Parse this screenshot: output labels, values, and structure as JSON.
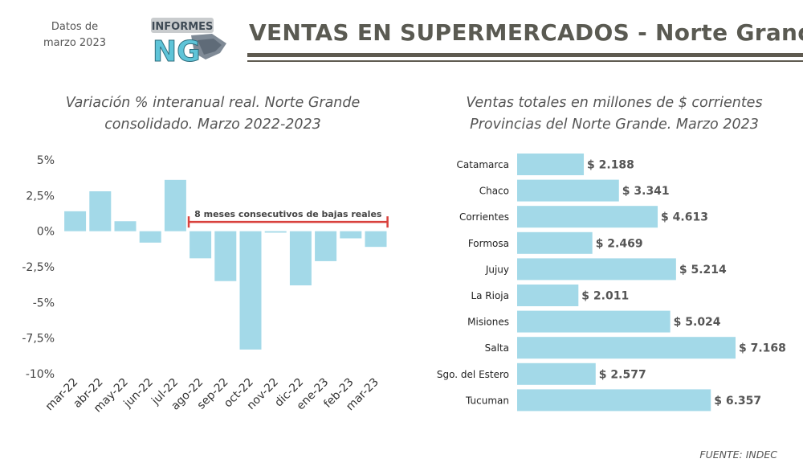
{
  "header": {
    "date_note_line1": "Datos de",
    "date_note_line2": "marzo 2023",
    "logo_text": "INFORMES",
    "logo_mark": "NG",
    "title": "VENTAS EN SUPERMERCADOS - Norte Grande"
  },
  "source": "FUENTE: INDEC",
  "chart_data": [
    {
      "type": "bar",
      "title_line1": "Variación % interanual real. Norte Grande",
      "title_line2": "consolidado. Marzo 2022-2023",
      "categories": [
        "mar-22",
        "abr-22",
        "may-22",
        "jun-22",
        "jul-22",
        "ago-22",
        "sep-22",
        "oct-22",
        "nov-22",
        "dic-22",
        "ene-23",
        "feb-23",
        "mar-23"
      ],
      "values": [
        1.4,
        2.8,
        0.7,
        -0.8,
        3.6,
        -1.9,
        -3.5,
        -8.3,
        -0.1,
        -3.8,
        -2.1,
        -0.5,
        -1.1
      ],
      "ylim": [
        -10,
        5
      ],
      "yticks": [
        5,
        2.5,
        0,
        -2.5,
        -5,
        -7.5,
        -10
      ],
      "ytick_labels": [
        "5%",
        "2,5%",
        "0%",
        "-2,5%",
        "-5%",
        "-7,5%",
        "-10%"
      ],
      "bar_color": "#a3d9e8",
      "annotation": {
        "text": "8 meses consecutivos de bajas reales",
        "from": "ago-22",
        "to": "mar-23",
        "color": "#d9413d"
      }
    },
    {
      "type": "bar",
      "orientation": "horizontal",
      "title_line1": "Ventas totales en millones de $ corrientes",
      "title_line2": "Provincias del Norte Grande. Marzo 2023",
      "categories": [
        "Catamarca",
        "Chaco",
        "Corrientes",
        "Formosa",
        "Jujuy",
        "La Rioja",
        "Misiones",
        "Salta",
        "Sgo. del Estero",
        "Tucuman"
      ],
      "values": [
        2188,
        3341,
        4613,
        2469,
        5214,
        2011,
        5024,
        7168,
        2577,
        6357
      ],
      "value_labels": [
        "$ 2.188",
        "$ 3.341",
        "$ 4.613",
        "$ 2.469",
        "$ 5.214",
        "$ 2.011",
        "$ 5.024",
        "$ 7.168",
        "$ 2.577",
        "$ 6.357"
      ],
      "bar_color": "#a3d9e8"
    }
  ]
}
